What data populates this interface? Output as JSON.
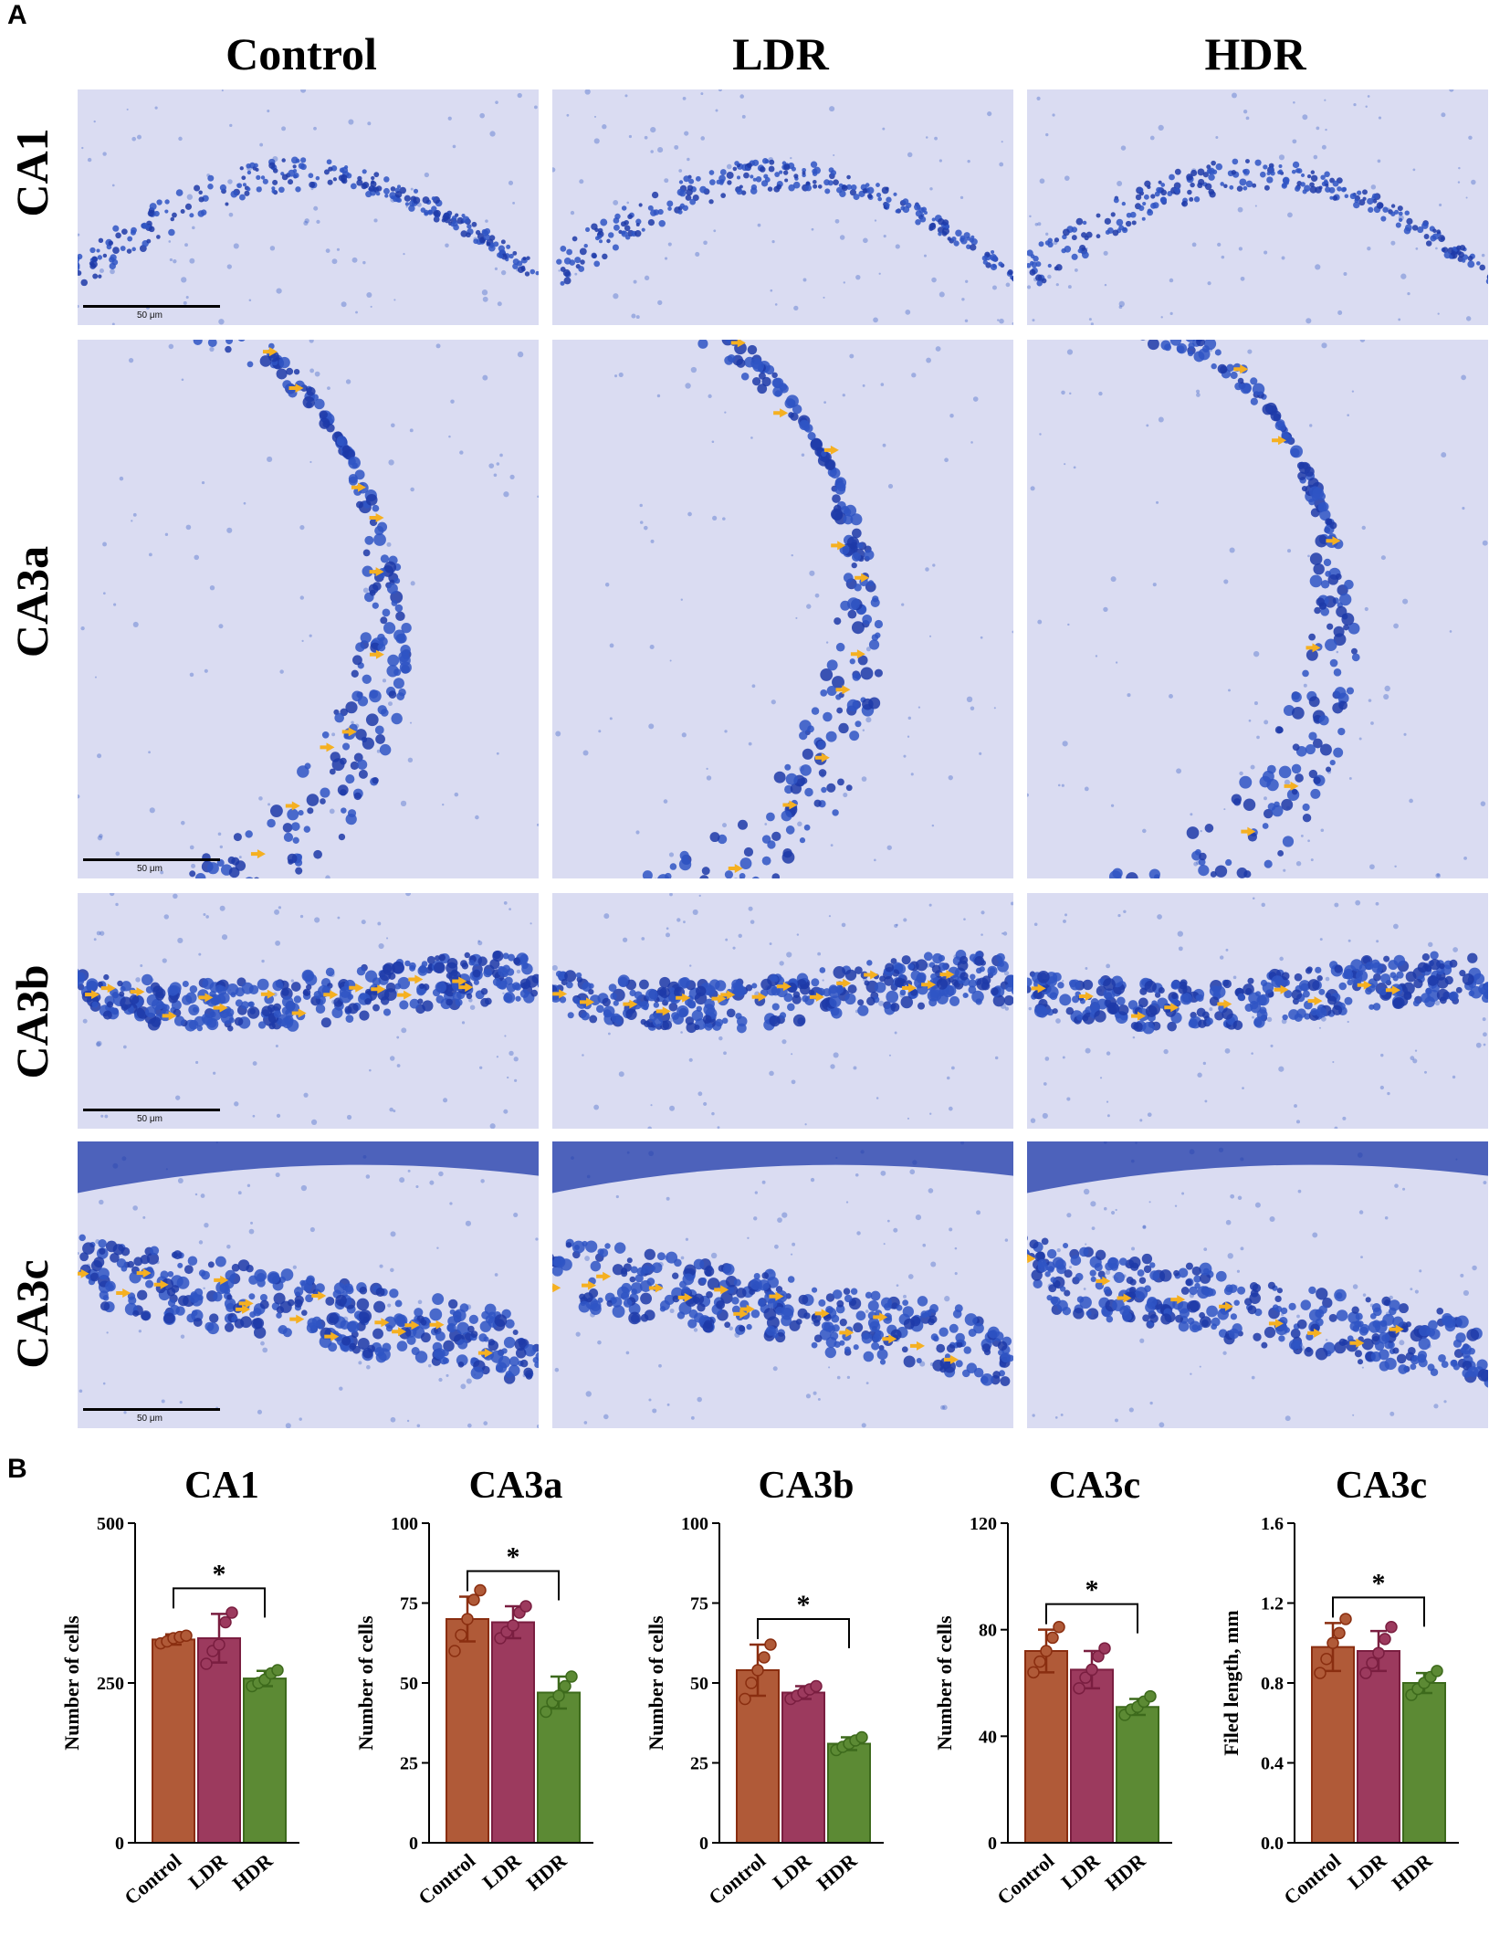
{
  "panels": {
    "a_label": "A",
    "b_label": "B"
  },
  "micrograph": {
    "columns": [
      "Control",
      "LDR",
      "HDR"
    ],
    "rows": [
      "CA1",
      "CA3a",
      "CA3b",
      "CA3c"
    ],
    "scale_label": "50 μm",
    "colors": {
      "background": "#dadcf2",
      "cell": "#2f55c4",
      "cell_dark": "#1d3aa8",
      "arrow": "#f5b021"
    }
  },
  "chart_data": [
    {
      "type": "bar",
      "title": "CA1",
      "ylabel": "Number of cells",
      "categories": [
        "Control",
        "LDR",
        "HDR"
      ],
      "values": [
        318,
        320,
        257
      ],
      "errors": [
        8,
        38,
        12
      ],
      "points": [
        [
          312,
          315,
          320,
          322,
          324
        ],
        [
          280,
          300,
          310,
          345,
          360
        ],
        [
          245,
          250,
          255,
          265,
          270
        ]
      ],
      "ylim": [
        0,
        500
      ],
      "yticks": [
        0,
        250,
        500
      ],
      "ytick_labels": [
        "0",
        "250",
        "500"
      ],
      "significance": {
        "from": 0,
        "to": 2,
        "label": "*"
      }
    },
    {
      "type": "bar",
      "title": "CA3a",
      "ylabel": "Number of cells",
      "categories": [
        "Control",
        "LDR",
        "HDR"
      ],
      "values": [
        70,
        69,
        47
      ],
      "errors": [
        7,
        5,
        5
      ],
      "points": [
        [
          60,
          65,
          70,
          76,
          79
        ],
        [
          64,
          66,
          68,
          72,
          74
        ],
        [
          41,
          44,
          46,
          49,
          52
        ]
      ],
      "ylim": [
        0,
        100
      ],
      "yticks": [
        0,
        25,
        50,
        75,
        100
      ],
      "ytick_labels": [
        "0",
        "25",
        "50",
        "75",
        "100"
      ],
      "significance": {
        "from": 0,
        "to": 2,
        "label": "*"
      }
    },
    {
      "type": "bar",
      "title": "CA3b",
      "ylabel": "Number of cells",
      "categories": [
        "Control",
        "LDR",
        "HDR"
      ],
      "values": [
        54,
        47,
        31
      ],
      "errors": [
        8,
        2,
        2
      ],
      "points": [
        [
          45,
          50,
          54,
          58,
          62
        ],
        [
          45,
          46,
          47,
          48,
          49
        ],
        [
          29,
          30,
          31,
          32,
          33
        ]
      ],
      "ylim": [
        0,
        100
      ],
      "yticks": [
        0,
        25,
        50,
        75,
        100
      ],
      "ytick_labels": [
        "0",
        "25",
        "50",
        "75",
        "100"
      ],
      "significance": {
        "from": 0,
        "to": 2,
        "label": "*"
      }
    },
    {
      "type": "bar",
      "title": "CA3c",
      "ylabel": "Number of cells",
      "categories": [
        "Control",
        "LDR",
        "HDR"
      ],
      "values": [
        72,
        65,
        51
      ],
      "errors": [
        8,
        7,
        3
      ],
      "points": [
        [
          64,
          68,
          72,
          77,
          81
        ],
        [
          58,
          62,
          65,
          70,
          73
        ],
        [
          48,
          50,
          51,
          53,
          55
        ]
      ],
      "ylim": [
        0,
        120
      ],
      "yticks": [
        0,
        40,
        80,
        120
      ],
      "ytick_labels": [
        "0",
        "40",
        "80",
        "120"
      ],
      "significance": {
        "from": 0,
        "to": 2,
        "label": "*"
      }
    },
    {
      "type": "bar",
      "title": "CA3c",
      "ylabel": "Filed length, mm",
      "categories": [
        "Control",
        "LDR",
        "HDR"
      ],
      "values": [
        0.98,
        0.96,
        0.8
      ],
      "errors": [
        0.12,
        0.1,
        0.05
      ],
      "points": [
        [
          0.85,
          0.92,
          1.0,
          1.05,
          1.12
        ],
        [
          0.85,
          0.9,
          0.95,
          1.02,
          1.08
        ],
        [
          0.74,
          0.77,
          0.8,
          0.83,
          0.86
        ]
      ],
      "ylim": [
        0,
        1.6
      ],
      "yticks": [
        0,
        0.4,
        0.8,
        1.2,
        1.6
      ],
      "ytick_labels": [
        "0.0",
        "0.4",
        "0.8",
        "1.2",
        "1.6"
      ],
      "significance": {
        "from": 0,
        "to": 2,
        "label": "*"
      }
    }
  ],
  "bar_colors": {
    "Control": "#b05a38",
    "LDR": "#9c3a5e",
    "HDR": "#5c8a34"
  },
  "edge_colors": {
    "Control": "#8a2e10",
    "LDR": "#7a1e40",
    "HDR": "#3d6a1c"
  }
}
